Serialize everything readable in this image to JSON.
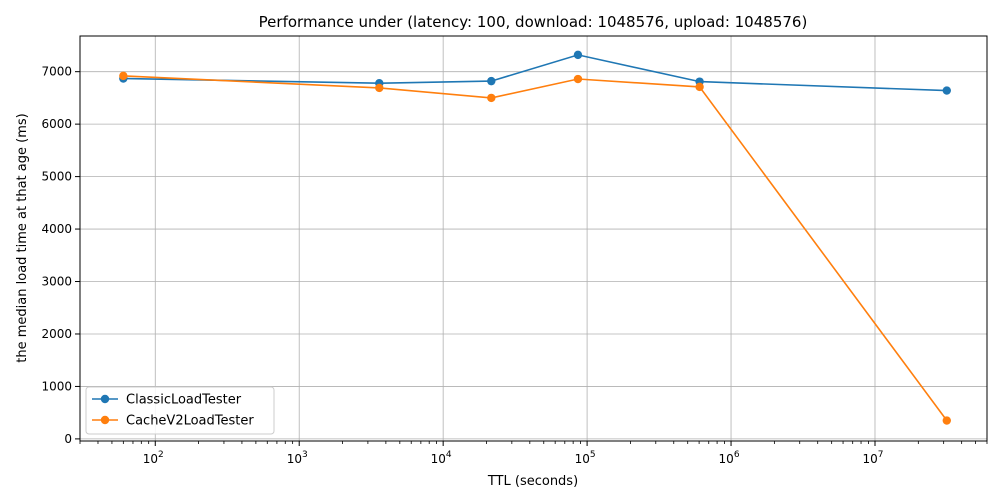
{
  "chart_data": {
    "type": "line",
    "title": "Performance under (latency: 100, download: 1048576, upload: 1048576)",
    "xlabel": "TTL (seconds)",
    "ylabel": "the median load time at that age (ms)",
    "xscale": "log",
    "xlim": [
      30,
      60000000
    ],
    "ylim": [
      -40,
      7680
    ],
    "grid": true,
    "legend_position": "lower-left",
    "x_ticks": [
      {
        "value": 100,
        "base": "10",
        "exp": "2"
      },
      {
        "value": 1000,
        "base": "10",
        "exp": "3"
      },
      {
        "value": 10000,
        "base": "10",
        "exp": "4"
      },
      {
        "value": 100000,
        "base": "10",
        "exp": "5"
      },
      {
        "value": 1000000,
        "base": "10",
        "exp": "6"
      },
      {
        "value": 10000000,
        "base": "10",
        "exp": "7"
      }
    ],
    "y_ticks": [
      0,
      1000,
      2000,
      3000,
      4000,
      5000,
      6000,
      7000
    ],
    "x": [
      60,
      3600,
      21600,
      86400,
      604800,
      31536000
    ],
    "series": [
      {
        "name": "ClassicLoadTester",
        "color": "#1f77b4",
        "values": [
          6870,
          6780,
          6820,
          7320,
          6810,
          6640
        ]
      },
      {
        "name": "CacheV2LoadTester",
        "color": "#ff7f0e",
        "values": [
          6920,
          6690,
          6500,
          6860,
          6710,
          350
        ]
      }
    ]
  }
}
